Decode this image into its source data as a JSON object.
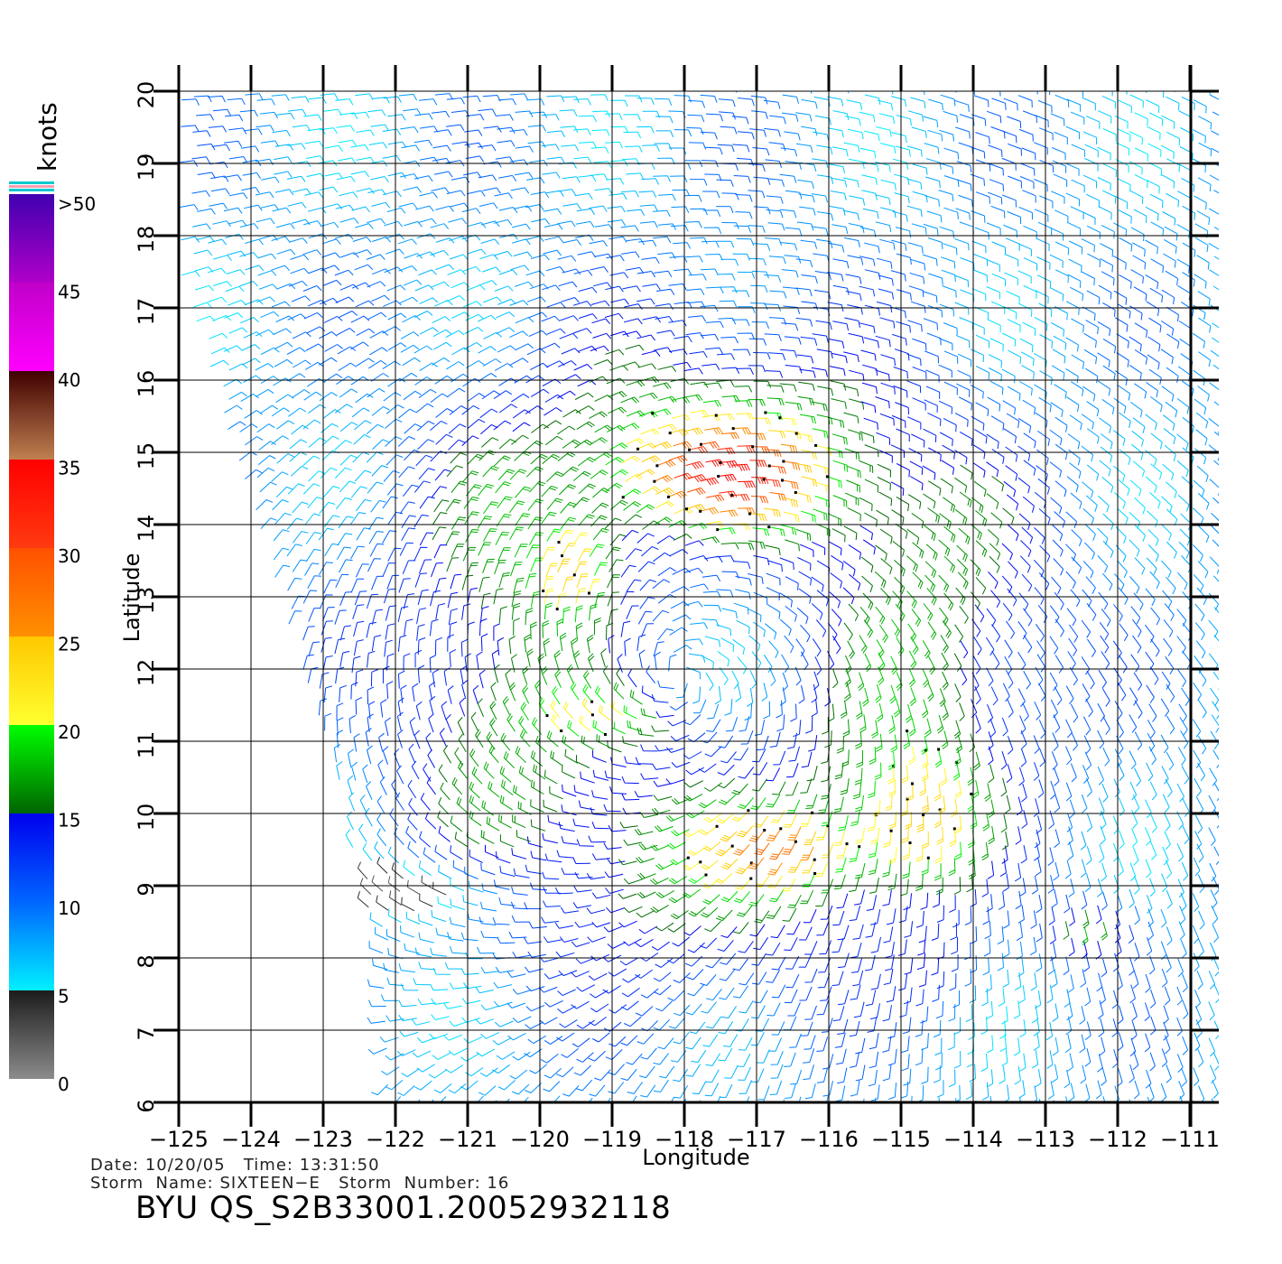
{
  "map": {
    "x_label": "Longitude",
    "y_label": "Latitude",
    "x_ticks": [
      "−125",
      "−124",
      "−123",
      "−122",
      "−121",
      "−120",
      "−119",
      "−118",
      "−117",
      "−116",
      "−115",
      "−114",
      "−113",
      "−112",
      "−111"
    ],
    "x_tick_values": [
      -125,
      -124,
      -123,
      -122,
      -121,
      -120,
      -119,
      -118,
      -117,
      -116,
      -115,
      -114,
      -113,
      -112,
      -111
    ],
    "y_ticks": [
      "6",
      "7",
      "8",
      "9",
      "10",
      "11",
      "12",
      "13",
      "14",
      "15",
      "16",
      "17",
      "18",
      "19",
      "20"
    ],
    "y_tick_values": [
      6,
      7,
      8,
      9,
      10,
      11,
      12,
      13,
      14,
      15,
      16,
      17,
      18,
      19,
      20
    ],
    "lon_range": [
      -125,
      -110.6
    ],
    "lat_range": [
      6,
      20
    ],
    "storm_center": {
      "lon": -117.6,
      "lat": 12.3
    }
  },
  "legend": {
    "unit": "knots",
    "labels": [
      ">50",
      "45",
      "40",
      "35",
      "30",
      "25",
      "20",
      "15",
      "10",
      "5",
      "0"
    ],
    "bands": [
      {
        "from": 0,
        "to": 5,
        "colors": [
          "#8c8c8c",
          "#1c1c1c"
        ]
      },
      {
        "from": 5,
        "to": 10,
        "colors": [
          "#00f0ff",
          "#0066ff"
        ]
      },
      {
        "from": 10,
        "to": 15,
        "colors": [
          "#0066ff",
          "#0000ee"
        ]
      },
      {
        "from": 15,
        "to": 20,
        "colors": [
          "#006400",
          "#00ff00"
        ]
      },
      {
        "from": 20,
        "to": 25,
        "colors": [
          "#ffff30",
          "#ffc800"
        ]
      },
      {
        "from": 25,
        "to": 30,
        "colors": [
          "#ff9000",
          "#ff5000"
        ]
      },
      {
        "from": 30,
        "to": 35,
        "colors": [
          "#ff3a10",
          "#ff0000"
        ]
      },
      {
        "from": 35,
        "to": 40,
        "colors": [
          "#c08050",
          "#400000"
        ]
      },
      {
        "from": 40,
        "to": 45,
        "colors": [
          "#ff00ff",
          "#c000c8"
        ]
      },
      {
        "from": 45,
        "to": 50,
        "colors": [
          "#b000c8",
          "#4000b0"
        ]
      }
    ]
  },
  "info": {
    "date_label": "Date:",
    "date": "10/20/05",
    "time_label": "Time:",
    "time": "13:31:50",
    "storm_name_label": "Storm  Name:",
    "storm_name": "SIXTEEN−E",
    "storm_number_label": "Storm  Number:",
    "storm_number": "16"
  },
  "title": "BYU  QS_S2B33001.20052932118"
}
